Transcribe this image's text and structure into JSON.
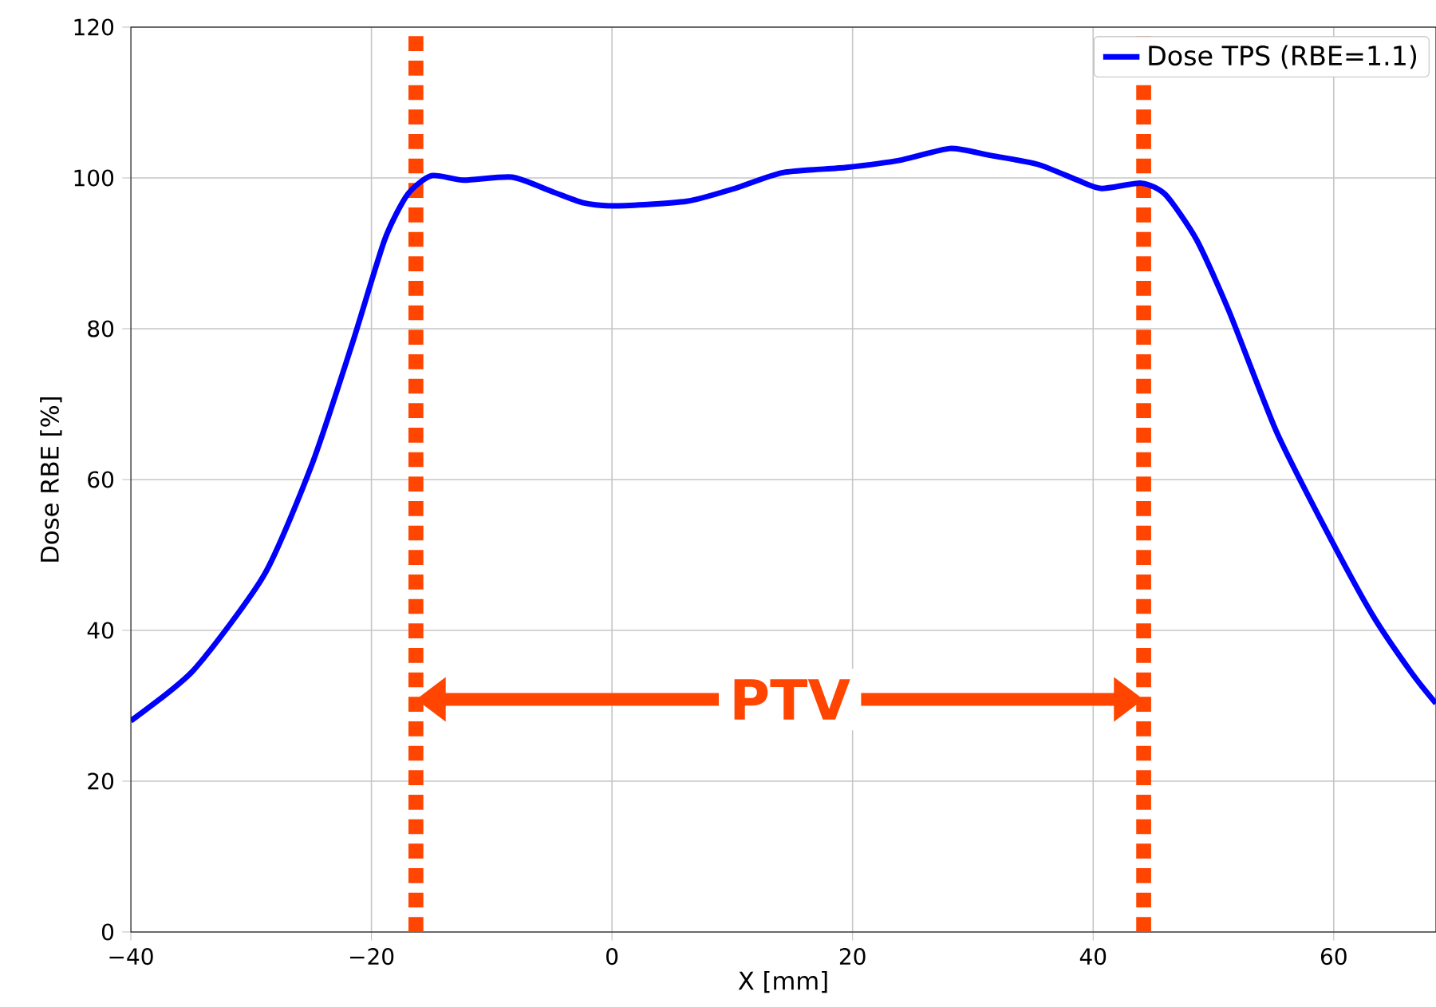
{
  "chart_data": {
    "type": "line",
    "xlabel": "X [mm]",
    "ylabel": "Dose RBE [%]",
    "xlim": [
      -40,
      68.5
    ],
    "xticks": [
      {
        "value": -40,
        "label": "−40"
      },
      {
        "value": -20,
        "label": "−20"
      },
      0,
      20,
      40,
      60
    ],
    "ylim": [
      0,
      120
    ],
    "yticks": [
      0,
      20,
      40,
      60,
      80,
      100,
      120
    ],
    "grid": true,
    "legend": "top right",
    "marker": "none",
    "line_style": "solid",
    "series": [
      {
        "name": "Dose TPS (RBE=1.1)",
        "color": "#0000ff",
        "x": [
          -40,
          -34.8,
          -28.9,
          -24.9,
          -21.6,
          -18.9,
          -17,
          -15,
          -12.3,
          -8.3,
          -5,
          -2.4,
          0.3,
          6.2,
          10.2,
          14.2,
          19.5,
          24.1,
          28.1,
          31.4,
          35.4,
          38.7,
          40.7,
          44,
          46,
          48.6,
          51.3,
          55.2,
          59.2,
          63.2,
          66.5,
          68.5
        ],
        "values": [
          28,
          34.7,
          47.4,
          62.2,
          78,
          91.8,
          97.8,
          100.3,
          99.7,
          100.1,
          98.2,
          96.7,
          96.3,
          96.9,
          98.6,
          100.7,
          101.4,
          102.4,
          103.9,
          103,
          101.8,
          99.7,
          98.6,
          99.3,
          97.8,
          91.8,
          82.3,
          66.5,
          53.8,
          42.1,
          34.3,
          30.3
        ]
      }
    ],
    "ref_lines": [
      {
        "axis": "x",
        "value": -16.3,
        "color": "#ff4500",
        "line_style": "dotted"
      },
      {
        "axis": "x",
        "value": 44.2,
        "color": "#ff4500",
        "line_style": "dotted"
      }
    ],
    "annotations": [
      "PTV"
    ]
  }
}
